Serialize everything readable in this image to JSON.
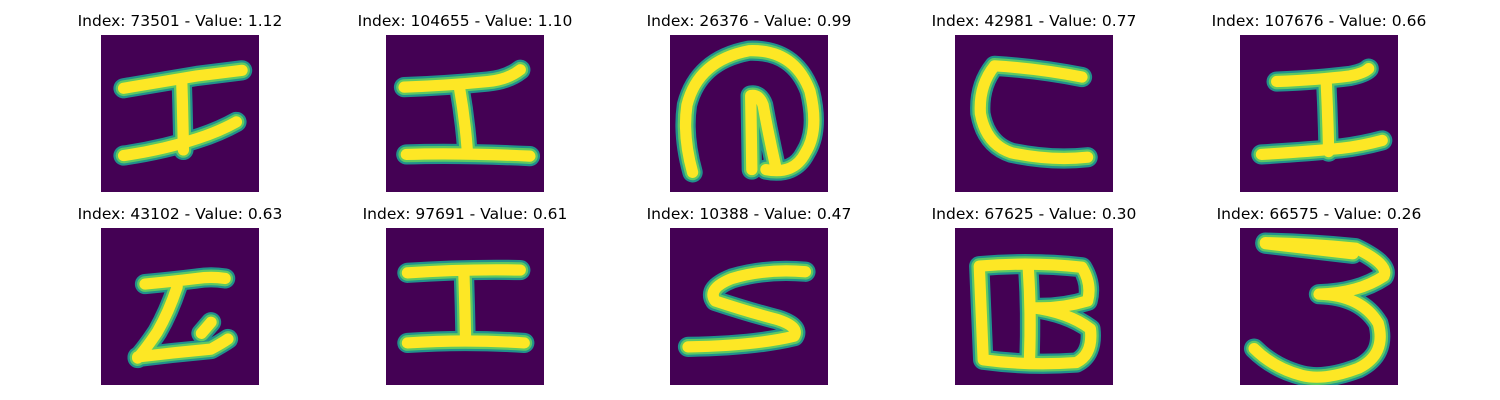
{
  "colors": {
    "background": "#440154",
    "stroke_core": "#fde725",
    "stroke_mid": "#5ec962",
    "stroke_edge": "#21918c"
  },
  "samples": [
    {
      "title": "Index: 73501 - Value: 1.12",
      "glyph": "H-like"
    },
    {
      "title": "Index: 104655 - Value: 1.10",
      "glyph": "H-like"
    },
    {
      "title": "Index: 26376 - Value: 0.99",
      "glyph": "at-like"
    },
    {
      "title": "Index: 42981 - Value: 0.77",
      "glyph": "C-like"
    },
    {
      "title": "Index: 107676 - Value: 0.66",
      "glyph": "H-like"
    },
    {
      "title": "Index: 43102 - Value: 0.63",
      "glyph": "Z-like"
    },
    {
      "title": "Index: 97691 - Value: 0.61",
      "glyph": "H-like"
    },
    {
      "title": "Index: 10388 - Value: 0.47",
      "glyph": "S-like"
    },
    {
      "title": "Index: 67625 - Value: 0.30",
      "glyph": "B-like"
    },
    {
      "title": "Index: 66575 - Value: 0.26",
      "glyph": "3-like"
    }
  ]
}
